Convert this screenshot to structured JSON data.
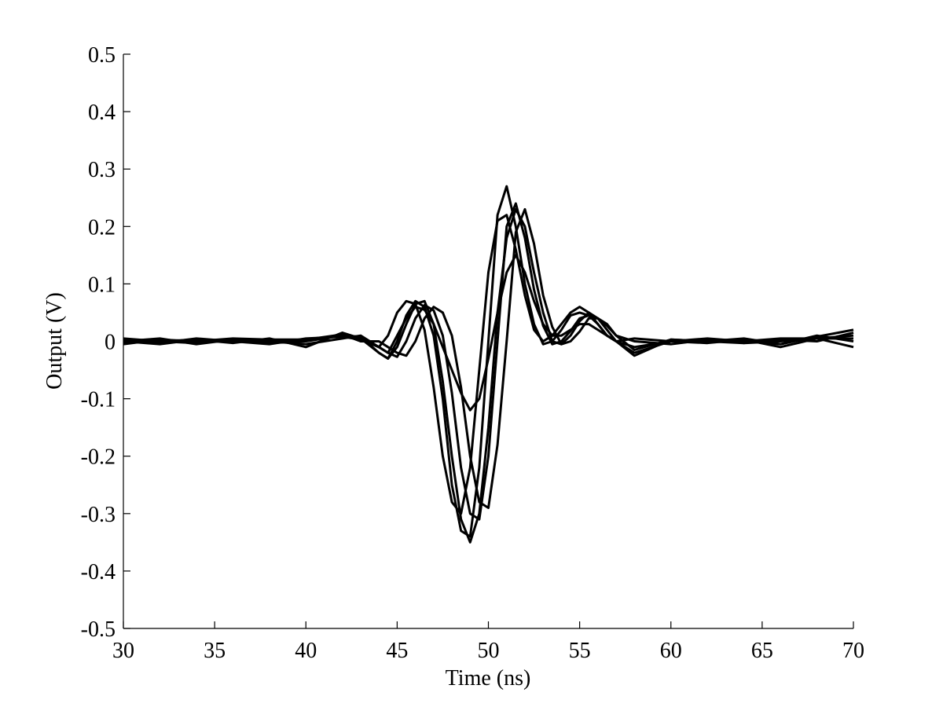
{
  "chart_data": {
    "type": "line",
    "x_label": "Time (ns)",
    "y_label": "Output (V)",
    "x": [
      30,
      32,
      34,
      36,
      38,
      40,
      42,
      43,
      44,
      44.5,
      45,
      45.5,
      46,
      46.5,
      47,
      47.5,
      48,
      48.5,
      49,
      49.5,
      50,
      50.5,
      51,
      51.5,
      52,
      52.5,
      53,
      53.5,
      54,
      54.5,
      55,
      55.5,
      56,
      56.5,
      57,
      58,
      60,
      62,
      64,
      66,
      68,
      70
    ],
    "series": [
      {
        "color": "#000000",
        "values": [
          0,
          -0.005,
          0.003,
          0,
          -0.003,
          0,
          0.01,
          0.005,
          -0.02,
          -0.03,
          0.0,
          0.045,
          0.07,
          0.06,
          0.01,
          -0.1,
          -0.25,
          -0.33,
          -0.34,
          -0.22,
          0.0,
          0.22,
          0.27,
          0.2,
          0.1,
          0.03,
          -0.005,
          0.0,
          0.02,
          0.045,
          0.05,
          0.045,
          0.03,
          0.01,
          0,
          -0.02,
          0,
          0.003,
          -0.003,
          0,
          0.005,
          0.01
        ]
      },
      {
        "color": "#000000",
        "values": [
          0.005,
          0,
          -0.003,
          0.003,
          0,
          -0.005,
          0.005,
          0.01,
          -0.01,
          -0.02,
          -0.027,
          0.0,
          0.04,
          0.063,
          0.054,
          0.01,
          -0.09,
          -0.22,
          -0.3,
          -0.31,
          -0.2,
          0,
          0.2,
          0.24,
          0.18,
          0.09,
          0.027,
          -0.005,
          0,
          0.018,
          0.04,
          0.045,
          0.04,
          0.027,
          0.01,
          -0.015,
          0.003,
          0,
          0.005,
          -0.005,
          0.008,
          0.02
        ]
      },
      {
        "color": "#000000",
        "values": [
          -0.005,
          0.003,
          0,
          0.005,
          0.003,
          0.003,
          0.012,
          0,
          0,
          -0.01,
          -0.02,
          -0.025,
          0.0,
          0.04,
          0.06,
          0.05,
          0.01,
          -0.08,
          -0.2,
          -0.28,
          -0.29,
          -0.18,
          0,
          0.19,
          0.23,
          0.17,
          0.08,
          0.025,
          -0.005,
          0,
          0.017,
          0.04,
          0.04,
          0.03,
          0.01,
          0,
          -0.005,
          0.003,
          0,
          0.005,
          0.005,
          -0.01
        ]
      },
      {
        "color": "#000000",
        "values": [
          0.003,
          -0.003,
          0.005,
          0,
          -0.005,
          0.005,
          0.008,
          0.003,
          -0.01,
          -0.02,
          0.01,
          0.04,
          0.06,
          0.055,
          0.03,
          -0.01,
          -0.05,
          -0.09,
          -0.12,
          -0.1,
          -0.03,
          0.05,
          0.12,
          0.15,
          0.12,
          0.07,
          0.03,
          0.01,
          0.01,
          0.02,
          0.03,
          0.03,
          0.02,
          0.01,
          0,
          0.005,
          0,
          -0.003,
          0.003,
          -0.01,
          0.005,
          0.005
        ]
      },
      {
        "color": "#000000",
        "values": [
          -0.003,
          0,
          0.003,
          -0.003,
          0.005,
          -0.01,
          0.015,
          0.005,
          -0.01,
          0.01,
          0.05,
          0.07,
          0.065,
          0.02,
          -0.08,
          -0.2,
          -0.28,
          -0.3,
          -0.22,
          -0.05,
          0.12,
          0.21,
          0.22,
          0.16,
          0.08,
          0.02,
          0.0,
          0.01,
          0.03,
          0.05,
          0.06,
          0.05,
          0.03,
          0.01,
          0,
          -0.025,
          0.003,
          0,
          -0.003,
          0.003,
          0,
          0.015
        ]
      },
      {
        "color": "#000000",
        "values": [
          0,
          0.005,
          -0.005,
          0.003,
          0,
          0.002,
          0.01,
          0.008,
          -0.02,
          -0.03,
          -0.01,
          0.03,
          0.065,
          0.07,
          0.03,
          -0.07,
          -0.2,
          -0.31,
          -0.35,
          -0.3,
          -0.15,
          0.05,
          0.18,
          0.23,
          0.2,
          0.12,
          0.05,
          0.0,
          -0.005,
          0.01,
          0.035,
          0.05,
          0.04,
          0.02,
          0,
          -0.01,
          0,
          0.005,
          0,
          -0.005,
          0.01,
          0
        ]
      }
    ],
    "xlim": [
      30,
      70
    ],
    "ylim": [
      -0.5,
      0.5
    ],
    "xticks": [
      30,
      35,
      40,
      45,
      50,
      55,
      60,
      65,
      70
    ],
    "yticks": [
      -0.5,
      -0.4,
      -0.3,
      -0.2,
      -0.1,
      0,
      0.1,
      0.2,
      0.3,
      0.4,
      0.5
    ]
  }
}
